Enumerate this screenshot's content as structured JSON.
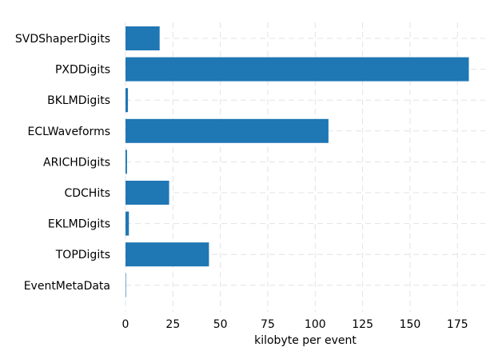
{
  "chart_data": {
    "type": "bar",
    "orientation": "horizontal",
    "categories": [
      "SVDShaperDigits",
      "PXDDigits",
      "BKLMDigits",
      "ECLWaveforms",
      "ARICHDigits",
      "CDCHits",
      "EKLMDigits",
      "TOPDigits",
      "EventMetaData"
    ],
    "values": [
      18,
      181,
      1.3,
      107,
      0.8,
      23,
      1.8,
      44,
      0.1
    ],
    "xlabel": "kilobyte per event",
    "ylabel": "",
    "title": "",
    "xlim": [
      0,
      190
    ],
    "xticks": [
      0,
      25,
      50,
      75,
      100,
      125,
      150,
      175
    ],
    "grid": true,
    "bar_color": "#1f77b4"
  }
}
